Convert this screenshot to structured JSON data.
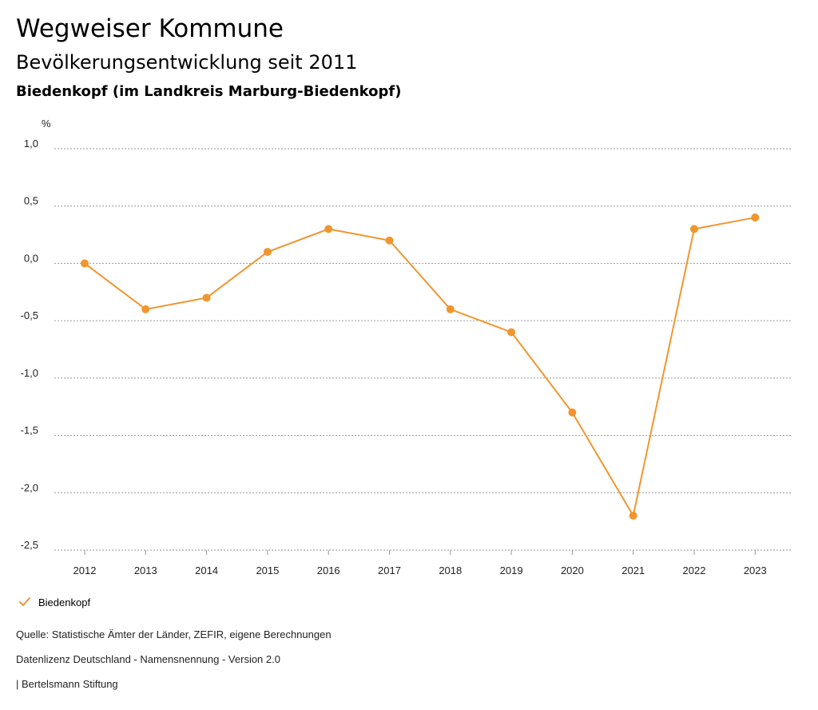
{
  "header": {
    "title": "Wegweiser Kommune",
    "subtitle": "Bevölkerungsentwicklung seit 2011",
    "region": "Biedenkopf (im Landkreis Marburg-Biedenkopf)"
  },
  "chart_data": {
    "type": "line",
    "unit_label": "%",
    "x": [
      "2012",
      "2013",
      "2014",
      "2015",
      "2016",
      "2017",
      "2018",
      "2019",
      "2020",
      "2021",
      "2022",
      "2023"
    ],
    "series": [
      {
        "name": "Biedenkopf",
        "color": "#f0962f",
        "values": [
          0.0,
          -0.4,
          -0.3,
          0.1,
          0.3,
          0.2,
          -0.4,
          -0.6,
          -1.3,
          -2.2,
          0.3,
          0.4
        ]
      }
    ],
    "ylim": [
      -2.5,
      1.0
    ],
    "yticks": [
      1.0,
      0.5,
      0.0,
      -0.5,
      -1.0,
      -1.5,
      -2.0,
      -2.5
    ],
    "ytick_labels": [
      "1,0",
      "0,5",
      "0,0",
      "-0,5",
      "-1,0",
      "-1,5",
      "-2,0",
      "-2,5"
    ],
    "grid": true,
    "legend": "bottom-left"
  },
  "legend": {
    "label": "Biedenkopf",
    "icon": "check-icon"
  },
  "footer": {
    "source": "Quelle: Statistische Ämter der Länder, ZEFIR, eigene Berechnungen",
    "license": "Datenlizenz Deutschland - Namensnennung - Version 2.0",
    "credit": "| Bertelsmann Stiftung"
  }
}
